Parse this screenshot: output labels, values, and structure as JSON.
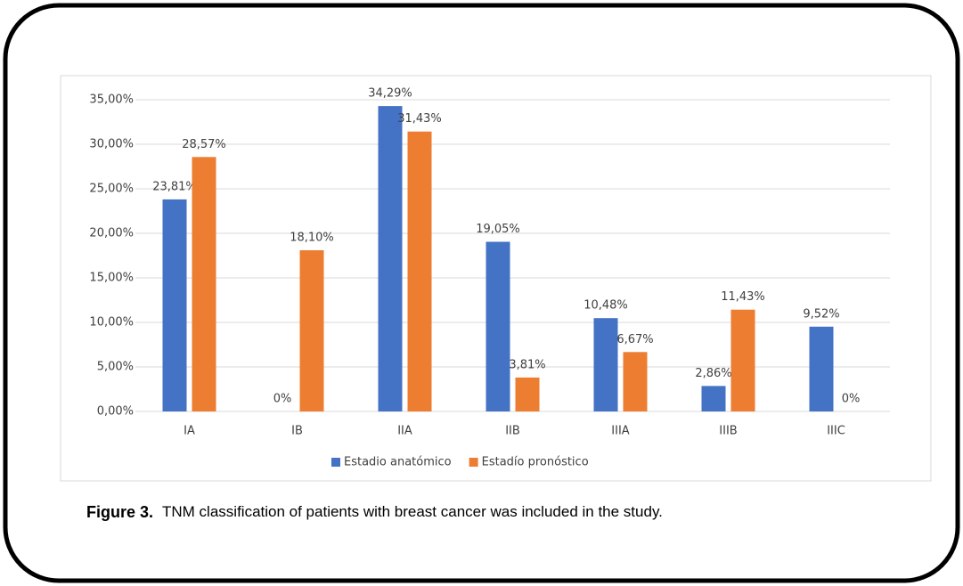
{
  "chart_data": {
    "type": "bar",
    "categories": [
      "IA",
      "IB",
      "IIA",
      "IIB",
      "IIIA",
      "IIIB",
      "IIIC"
    ],
    "series": [
      {
        "name": "Estadio anatómico",
        "color": "#4472c4",
        "values": [
          23.81,
          0,
          34.29,
          19.05,
          10.48,
          2.86,
          9.52
        ],
        "value_labels": [
          "23,81%",
          "0%",
          "34,29%",
          "19,05%",
          "10,48%",
          "2,86%",
          "9,52%"
        ]
      },
      {
        "name": "Estadío pronóstico",
        "color": "#ed7d31",
        "values": [
          28.57,
          18.1,
          31.43,
          3.81,
          6.67,
          11.43,
          0
        ],
        "value_labels": [
          "28,57%",
          "18,10%",
          "31,43%",
          "3,81%",
          "6,67%",
          "11,43%",
          "0%"
        ]
      }
    ],
    "ylim": [
      0,
      35
    ],
    "yticks": [
      {
        "value": 0,
        "label": "0,00%"
      },
      {
        "value": 5,
        "label": "5,00%"
      },
      {
        "value": 10,
        "label": "10,00%"
      },
      {
        "value": 15,
        "label": "15,00%"
      },
      {
        "value": 20,
        "label": "20,00%"
      },
      {
        "value": 25,
        "label": "25,00%"
      },
      {
        "value": 30,
        "label": "30,00%"
      },
      {
        "value": 35,
        "label": "35,00%"
      }
    ],
    "grid": true,
    "legend": "bottom"
  },
  "caption": {
    "label": "Figure 3.",
    "text": "TNM classification of patients with breast cancer was included in the study."
  }
}
